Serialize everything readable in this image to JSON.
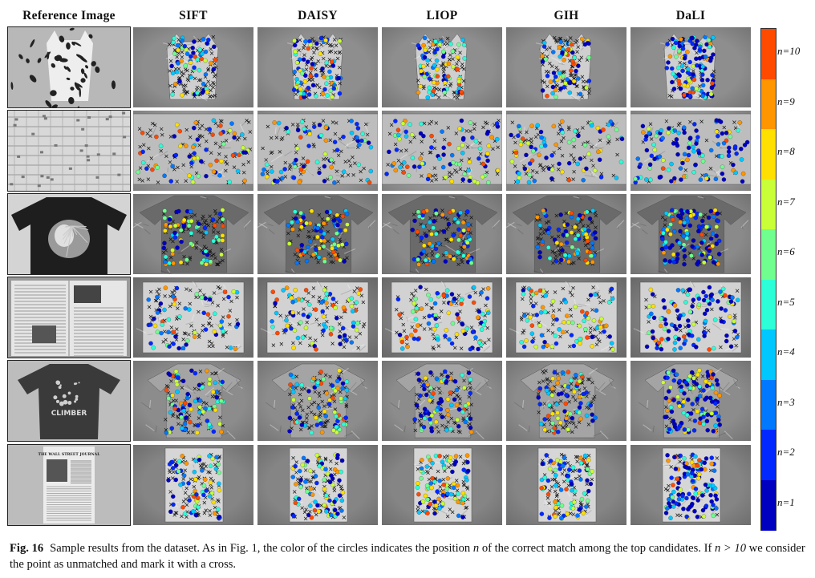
{
  "column_headers": [
    "Reference Image",
    "SIFT",
    "DAISY",
    "LIOP",
    "GIH",
    "DaLI"
  ],
  "rows": [
    {
      "reference": "shirt with floral print"
    },
    {
      "reference": "patterned cloth"
    },
    {
      "reference": "black t-shirt with eagle print"
    },
    {
      "reference": "newspaper spread"
    },
    {
      "reference": "grey t-shirt with print"
    },
    {
      "reference": "newspaper front page"
    }
  ],
  "reference_overlay_text": [
    "THE WALL STREET JOURNAL",
    "CLIMBER"
  ],
  "colorbar": {
    "variable": "n",
    "labels": [
      "n=10",
      "n=9",
      "n=8",
      "n=7",
      "n=6",
      "n=5",
      "n=4",
      "n=3",
      "n=2",
      "n=1"
    ],
    "colors": [
      "#ff4a00",
      "#ff9600",
      "#ffe000",
      "#c8ff37",
      "#70ff8f",
      "#2cffd8",
      "#00c8ff",
      "#0078ff",
      "#0028ff",
      "#0000c0"
    ]
  },
  "caption": {
    "label": "Fig. 16",
    "text_part1": "Sample results from the dataset. As in Fig. 1, the color of the circles indicates the position ",
    "var_n": "n",
    "text_part2": " of the correct match among the top candidates. If ",
    "math_expr": "n > 10",
    "text_part3": " we consider the point as unmatched and mark it with a cross."
  }
}
